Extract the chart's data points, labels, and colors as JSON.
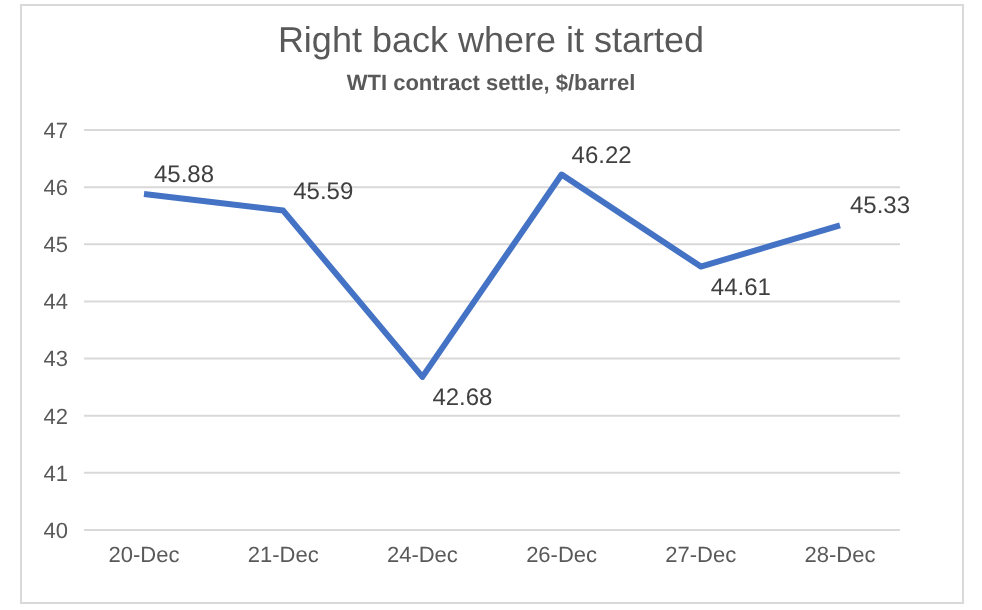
{
  "chart_data": {
    "type": "line",
    "title": "Right back where it started",
    "subtitle": "WTI contract settle, $/barrel",
    "categories": [
      "20-Dec",
      "21-Dec",
      "24-Dec",
      "26-Dec",
      "27-Dec",
      "28-Dec"
    ],
    "series": [
      {
        "color": "#4472c4",
        "values": [
          45.88,
          45.59,
          42.68,
          46.22,
          44.61,
          45.33
        ]
      }
    ],
    "ylim": [
      40,
      47
    ],
    "yticks": [
      40,
      41,
      42,
      43,
      44,
      45,
      46,
      47
    ],
    "grid": "y",
    "data_labels": true,
    "marker": "none",
    "line_style": "solid"
  }
}
